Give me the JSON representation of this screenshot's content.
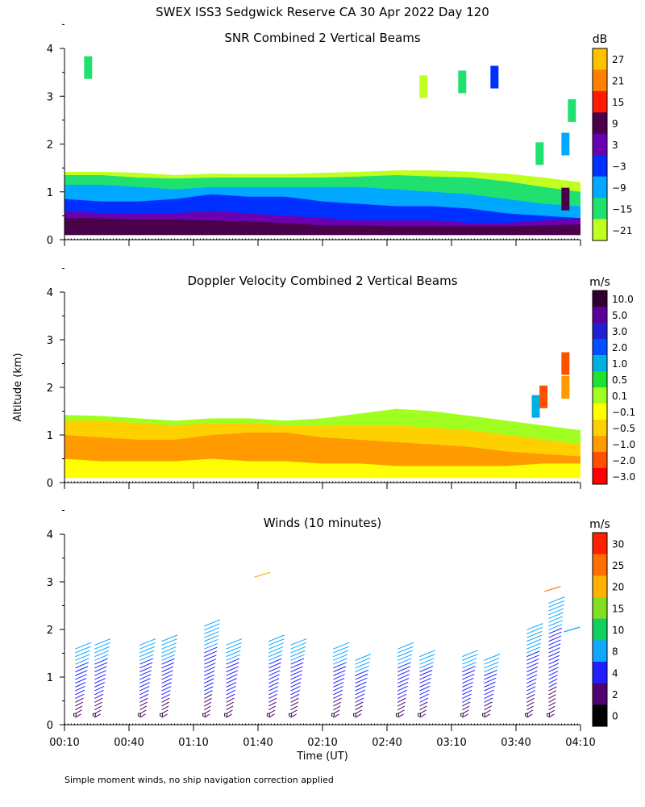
{
  "title": "SWEX ISS3 Sedgwick Reserve CA  30 Apr 2022 Day 120",
  "footnote": "Simple moment winds, no ship navigation correction applied",
  "shared_axes": {
    "ylabel": "Altitude (km)",
    "xlabel": "Time (UT)",
    "x_tick_labels": [
      "00:10",
      "00:40",
      "01:10",
      "01:40",
      "02:10",
      "02:40",
      "03:10",
      "03:40",
      "04:10"
    ],
    "y_tick_labels": [
      "0",
      "1",
      "2",
      "3",
      "4"
    ],
    "ylim": [
      0,
      4
    ]
  },
  "chart_data": [
    {
      "type": "heatmap",
      "title": "SNR Combined 2 Vertical Beams",
      "colorbar_unit": "dB",
      "colorbar_labels": [
        "27",
        "21",
        "15",
        "9",
        "3",
        "−3",
        "−9",
        "−15",
        "−21"
      ],
      "colorbar_colors": [
        "#ffc000",
        "#ff7f00",
        "#ff1a00",
        "#4a004a",
        "#6a00b0",
        "#0030ff",
        "#00a8ff",
        "#20e070",
        "#c0ff20"
      ],
      "x_range_hours": [
        0.1667,
        4.1667
      ],
      "ylim": [
        0,
        4
      ],
      "layers": [
        {
          "name": "weak-edge",
          "color": "#c0ff20",
          "heights": [
            1.42,
            1.42,
            1.4,
            1.35,
            1.38,
            1.37,
            1.37,
            1.4,
            1.42,
            1.45,
            1.45,
            1.42,
            1.38,
            1.3,
            1.2
          ]
        },
        {
          "name": "weak",
          "color": "#20e070",
          "heights": [
            1.35,
            1.35,
            1.3,
            1.28,
            1.3,
            1.3,
            1.3,
            1.3,
            1.32,
            1.35,
            1.32,
            1.3,
            1.22,
            1.1,
            1.0
          ]
        },
        {
          "name": "moderate-low",
          "color": "#00a8ff",
          "heights": [
            1.15,
            1.15,
            1.1,
            1.05,
            1.1,
            1.1,
            1.1,
            1.1,
            1.1,
            1.05,
            1.0,
            0.95,
            0.85,
            0.75,
            0.7
          ]
        },
        {
          "name": "moderate",
          "color": "#0030ff",
          "heights": [
            0.85,
            0.8,
            0.8,
            0.85,
            0.95,
            0.9,
            0.9,
            0.8,
            0.75,
            0.7,
            0.7,
            0.65,
            0.55,
            0.5,
            0.45
          ]
        },
        {
          "name": "strong",
          "color": "#6a00b0",
          "heights": [
            0.6,
            0.55,
            0.55,
            0.55,
            0.6,
            0.55,
            0.5,
            0.45,
            0.4,
            0.4,
            0.4,
            0.35,
            0.35,
            0.4,
            0.45
          ]
        },
        {
          "name": "very-strong",
          "color": "#4a004a",
          "heights": [
            0.45,
            0.45,
            0.42,
            0.42,
            0.4,
            0.38,
            0.35,
            0.3,
            0.3,
            0.28,
            0.28,
            0.28,
            0.28,
            0.3,
            0.32
          ]
        }
      ],
      "upper_echoes": [
        {
          "x": 0.35,
          "y": 3.6,
          "color": "#20e070"
        },
        {
          "x": 3.5,
          "y": 3.4,
          "color": "#0030ff"
        },
        {
          "x": 3.25,
          "y": 3.3,
          "color": "#20e070"
        },
        {
          "x": 2.95,
          "y": 3.2,
          "color": "#c0ff20"
        },
        {
          "x": 4.1,
          "y": 2.7,
          "color": "#20e070"
        },
        {
          "x": 4.05,
          "y": 2.0,
          "color": "#00a8ff"
        },
        {
          "x": 3.85,
          "y": 1.8,
          "color": "#20e070"
        },
        {
          "x": 4.05,
          "y": 0.85,
          "color": "#4a004a"
        }
      ]
    },
    {
      "type": "heatmap",
      "title": "Doppler Velocity Combined 2 Vertical Beams",
      "colorbar_unit": "m/s",
      "colorbar_labels": [
        "10.0",
        "5.0",
        "3.0",
        "2.0",
        "1.0",
        "0.5",
        "0.1",
        "−0.1",
        "−0.5",
        "−1.0",
        "−2.0",
        "−3.0"
      ],
      "colorbar_colors": [
        "#300030",
        "#5a009a",
        "#2020d0",
        "#0050ff",
        "#00b0e0",
        "#20e030",
        "#a0ff20",
        "#ffff00",
        "#ffd000",
        "#ff9a00",
        "#ff5000",
        "#ff0000"
      ],
      "x_range_hours": [
        0.1667,
        4.1667
      ],
      "ylim": [
        0,
        4
      ],
      "layers": [
        {
          "name": "top-weak",
          "color": "#a0ff20",
          "heights": [
            1.42,
            1.4,
            1.35,
            1.3,
            1.35,
            1.35,
            1.3,
            1.35,
            1.45,
            1.55,
            1.5,
            1.4,
            1.3,
            1.2,
            1.1
          ]
        },
        {
          "name": "downward-slight",
          "color": "#ffd000",
          "heights": [
            1.3,
            1.3,
            1.25,
            1.2,
            1.25,
            1.25,
            1.2,
            1.2,
            1.2,
            1.2,
            1.15,
            1.1,
            1.0,
            0.9,
            0.8
          ]
        },
        {
          "name": "downward-moderate",
          "color": "#ff9a00",
          "heights": [
            1.0,
            0.95,
            0.9,
            0.9,
            1.0,
            1.05,
            1.05,
            0.95,
            0.9,
            0.85,
            0.8,
            0.75,
            0.65,
            0.6,
            0.55
          ]
        },
        {
          "name": "near-zero",
          "color": "#ffff00",
          "heights": [
            0.5,
            0.45,
            0.45,
            0.45,
            0.5,
            0.45,
            0.45,
            0.4,
            0.4,
            0.35,
            0.35,
            0.35,
            0.35,
            0.4,
            0.4
          ]
        }
      ],
      "upper_echoes": [
        {
          "x": 4.05,
          "y": 2.5,
          "color": "#ff5000"
        },
        {
          "x": 4.05,
          "y": 2.0,
          "color": "#ff9a00"
        },
        {
          "x": 3.88,
          "y": 1.8,
          "color": "#ff5000"
        },
        {
          "x": 3.82,
          "y": 1.6,
          "color": "#00b0e0"
        }
      ]
    },
    {
      "type": "scatter",
      "title": "Winds (10 minutes)",
      "colorbar_unit": "m/s",
      "colorbar_labels": [
        "30",
        "25",
        "20",
        "15",
        "10",
        "8",
        "4",
        "2",
        "0"
      ],
      "colorbar_colors": [
        "#ff2000",
        "#ff7000",
        "#ffb000",
        "#80e020",
        "#10d060",
        "#10a8ff",
        "#2020ff",
        "#500070",
        "#000000"
      ],
      "x_range_hours": [
        0.1667,
        4.1667
      ],
      "ylim": [
        0,
        4
      ],
      "profile_times_hours": [
        0.25,
        0.4,
        0.75,
        0.92,
        1.25,
        1.42,
        1.75,
        1.92,
        2.25,
        2.42,
        2.75,
        2.92,
        3.25,
        3.42,
        3.75,
        3.92
      ],
      "profile_top_km": [
        1.6,
        1.7,
        1.7,
        1.8,
        2.1,
        1.7,
        1.8,
        1.7,
        1.6,
        1.4,
        1.6,
        1.5,
        1.5,
        1.4,
        2.0,
        2.6
      ],
      "isolated_barbs": [
        {
          "x": 1.7,
          "y": 3.15,
          "color": "#ffb000"
        },
        {
          "x": 3.95,
          "y": 2.85,
          "color": "#ff7000"
        },
        {
          "x": 4.1,
          "y": 2.0,
          "color": "#10a8ff"
        }
      ]
    }
  ]
}
